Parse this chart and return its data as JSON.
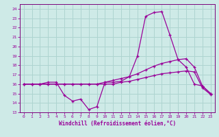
{
  "xlabel": "Windchill (Refroidissement éolien,°C)",
  "bg_color": "#ceeae7",
  "grid_color": "#aed4d0",
  "line_color": "#990099",
  "spine_color": "#7a007a",
  "xlim": [
    -0.5,
    23.5
  ],
  "ylim": [
    13,
    24.5
  ],
  "yticks": [
    13,
    14,
    15,
    16,
    17,
    18,
    19,
    20,
    21,
    22,
    23,
    24
  ],
  "xticks": [
    0,
    1,
    2,
    3,
    4,
    5,
    6,
    7,
    8,
    9,
    10,
    11,
    12,
    13,
    14,
    15,
    16,
    17,
    18,
    19,
    20,
    21,
    22,
    23
  ],
  "series1_x": [
    0,
    1,
    2,
    3,
    4,
    5,
    6,
    7,
    8,
    9,
    10,
    11,
    12,
    13,
    14,
    15,
    16,
    17,
    18,
    19,
    20,
    21,
    22,
    23
  ],
  "series1_y": [
    16.0,
    16.0,
    16.0,
    16.2,
    16.2,
    14.8,
    14.2,
    14.4,
    13.3,
    13.6,
    16.2,
    16.2,
    16.3,
    16.8,
    19.0,
    23.2,
    23.6,
    23.7,
    21.2,
    18.6,
    17.8,
    16.0,
    15.8,
    15.0
  ],
  "series2_x": [
    0,
    1,
    2,
    3,
    4,
    5,
    6,
    7,
    8,
    9,
    10,
    11,
    12,
    13,
    14,
    15,
    16,
    17,
    18,
    19,
    20,
    21,
    22,
    23
  ],
  "series2_y": [
    16.0,
    16.0,
    16.0,
    16.0,
    16.0,
    16.0,
    16.0,
    16.0,
    16.0,
    16.0,
    16.2,
    16.4,
    16.6,
    16.8,
    17.1,
    17.5,
    17.9,
    18.2,
    18.4,
    18.6,
    18.7,
    17.8,
    15.8,
    15.0
  ],
  "series3_x": [
    0,
    1,
    2,
    3,
    4,
    5,
    6,
    7,
    8,
    9,
    10,
    11,
    12,
    13,
    14,
    15,
    16,
    17,
    18,
    19,
    20,
    21,
    22,
    23
  ],
  "series3_y": [
    16.0,
    16.0,
    16.0,
    16.0,
    16.0,
    16.0,
    16.0,
    16.0,
    16.0,
    16.0,
    16.0,
    16.0,
    16.2,
    16.3,
    16.5,
    16.7,
    16.9,
    17.1,
    17.2,
    17.3,
    17.4,
    17.3,
    15.6,
    14.9
  ]
}
